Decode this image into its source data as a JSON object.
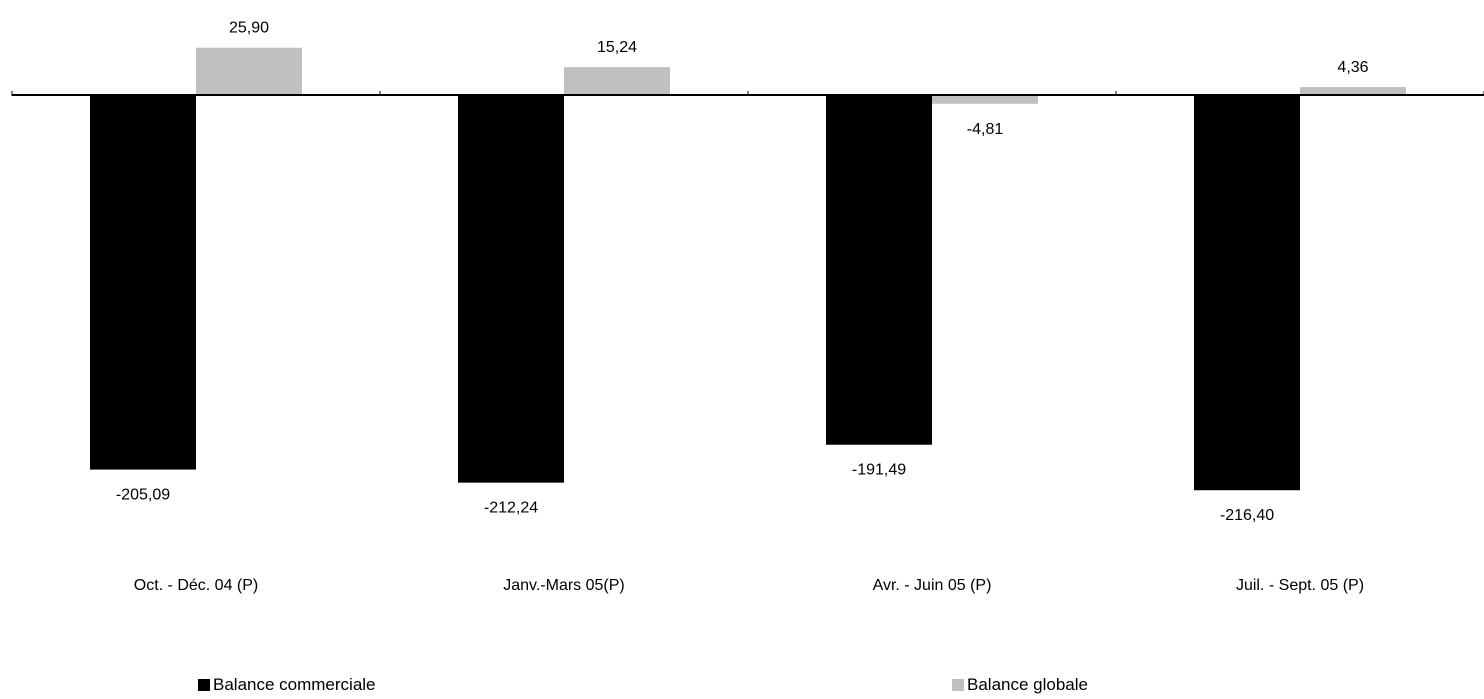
{
  "chart_data": {
    "type": "bar",
    "categories": [
      "Oct. - Déc. 04 (P)",
      "Janv.-Mars 05(P)",
      "Avr. - Juin 05 (P)",
      "Juil. - Sept. 05 (P)"
    ],
    "series": [
      {
        "name": "Balance commerciale",
        "values": [
          -205.09,
          -212.24,
          -191.49,
          -216.4
        ],
        "labels": [
          "-205,09",
          "-212,24",
          "-191,49",
          "-216,40"
        ],
        "color": "#000000"
      },
      {
        "name": "Balance globale",
        "values": [
          25.9,
          15.24,
          -4.81,
          4.36
        ],
        "labels": [
          "25,90",
          "15,24",
          "-4,81",
          "4,36"
        ],
        "color": "#c0c0c0"
      }
    ],
    "grid": false,
    "legend_position": "bottom"
  }
}
